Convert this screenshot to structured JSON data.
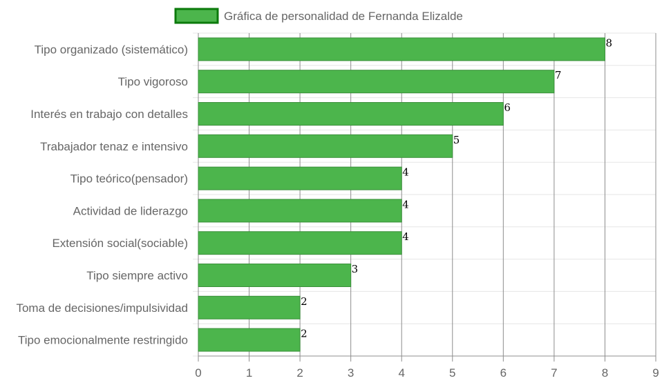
{
  "chart_data": {
    "type": "bar",
    "orientation": "horizontal",
    "categories": [
      "Tipo organizado (sistemático)",
      "Tipo vigoroso",
      "Interés en trabajo con detalles",
      "Trabajador tenaz e intensivo",
      "Tipo teórico(pensador)",
      "Actividad de liderazgo",
      "Extensión social(sociable)",
      "Tipo siempre activo",
      "Toma de decisiones/impulsividad",
      "Tipo emocionalmente restringido"
    ],
    "series": [
      {
        "name": "Gráfica de personalidad de Fernanda Elizalde",
        "values": [
          8,
          7,
          6,
          5,
          4,
          4,
          4,
          3,
          2,
          2
        ]
      }
    ],
    "xlim": [
      0,
      9
    ],
    "xticks": [
      0,
      1,
      2,
      3,
      4,
      5,
      6,
      7,
      8,
      9
    ],
    "grid": true,
    "legend_position": "top-center",
    "data_labels": true,
    "colors": {
      "bar_fill": "#4cb54c",
      "bar_border": "#3a8f3a",
      "legend_border": "#0b7a0b",
      "grid": "#e6e6e6",
      "vgrid": "#8c8c8c"
    }
  }
}
